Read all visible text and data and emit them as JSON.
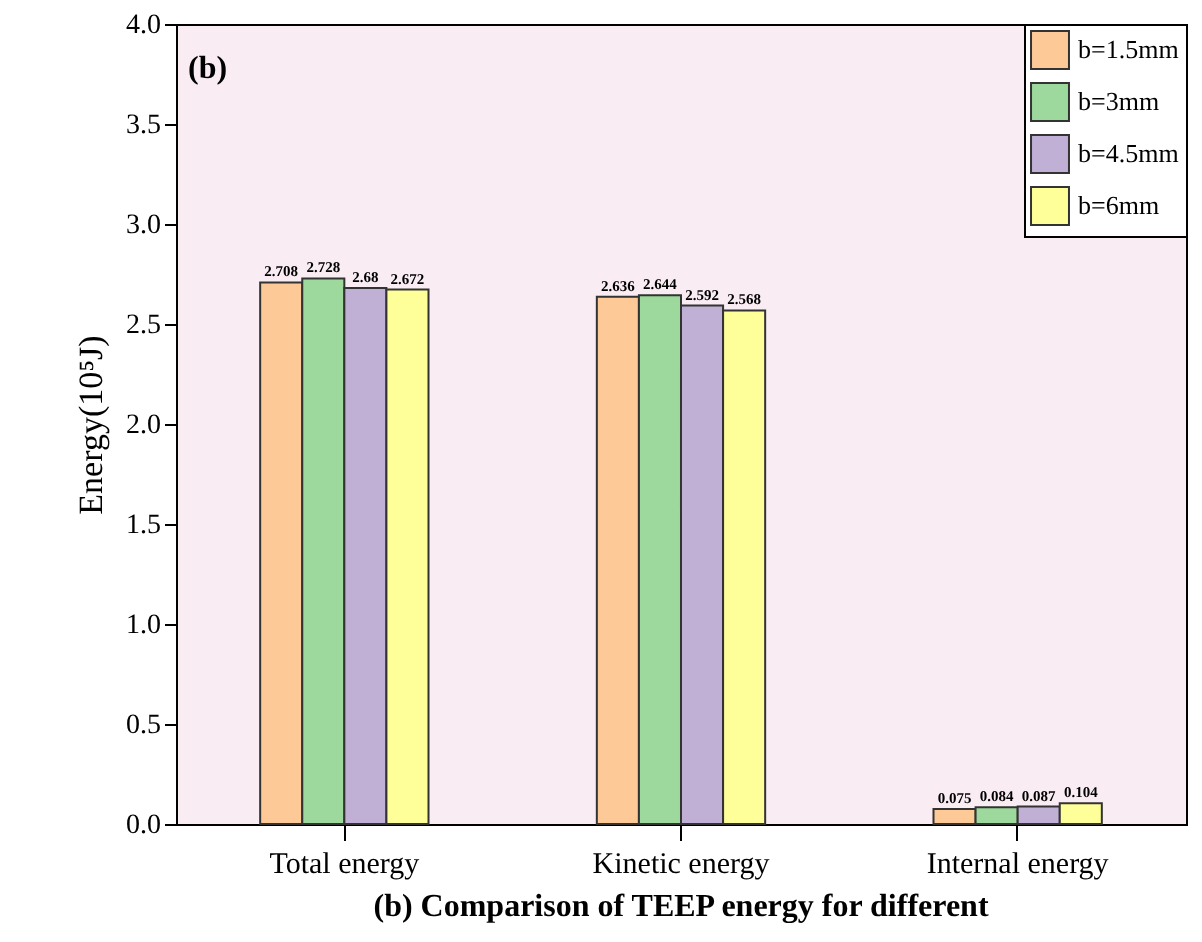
{
  "chart_data": {
    "type": "bar",
    "categories": [
      "Total energy",
      "Kinetic energy",
      "Internal energy"
    ],
    "ylabel": "Energy(10⁵J)",
    "series": [
      {
        "name": "b=1.5mm",
        "color": "#fdc997",
        "values": [
          2.708,
          2.636,
          0.075
        ]
      },
      {
        "name": "b=3mm",
        "color": "#9dd89d",
        "values": [
          2.728,
          2.644,
          0.084
        ]
      },
      {
        "name": "b=4.5mm",
        "color": "#c1b0d6",
        "values": [
          2.68,
          2.592,
          0.087
        ]
      },
      {
        "name": "b=6mm",
        "color": "#ffff99",
        "values": [
          2.672,
          2.568,
          0.104
        ]
      }
    ],
    "ylim": [
      0,
      4.0
    ],
    "yticks": [
      {
        "value": 0,
        "label": "0.0"
      },
      {
        "value": 0.5,
        "label": "0.5"
      },
      {
        "value": 1,
        "label": "1.0"
      },
      {
        "value": 1.5,
        "label": "1.5"
      },
      {
        "value": 2,
        "label": "2.0"
      },
      {
        "value": 2.5,
        "label": "2.5"
      },
      {
        "value": 3,
        "label": "3.0"
      },
      {
        "value": 3.5,
        "label": "3.5"
      },
      {
        "value": 4,
        "label": "4.0"
      }
    ],
    "data_labels": true,
    "legend": "top right",
    "grid": false,
    "annotations": [
      "(b)",
      "(b) Comparison of TEEP energy for different"
    ]
  }
}
